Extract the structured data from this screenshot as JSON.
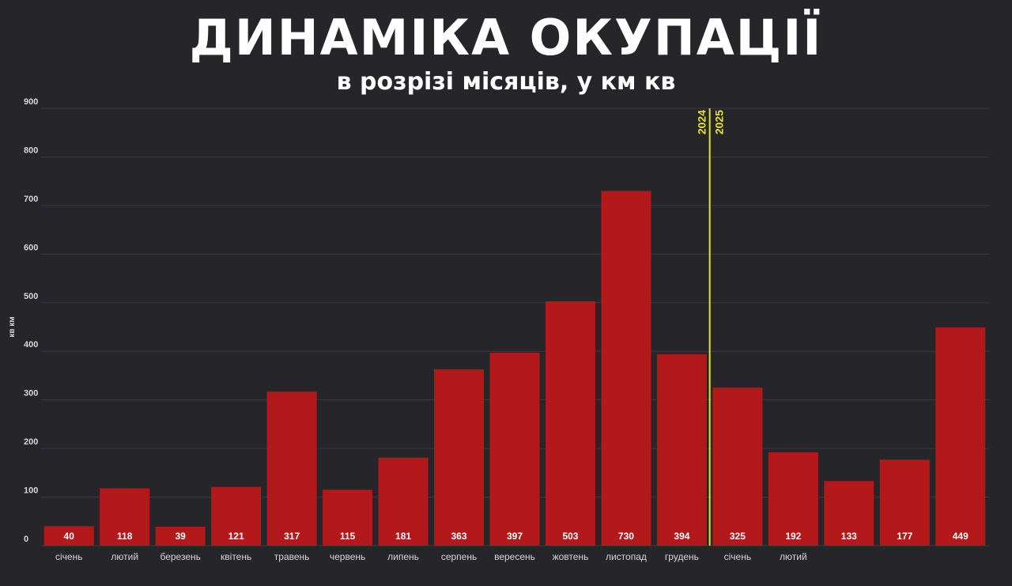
{
  "header": {
    "title": "ДИНАМІКА ОКУПАЦІЇ",
    "subtitle": "в розрізі місяців, у км кв"
  },
  "colors": {
    "background": "#25252a",
    "bar": "#b3191b",
    "grid": "#3a3a40",
    "divider": "#e6e619",
    "text": "#ffffff",
    "axis_text": "#d8d8d8"
  },
  "chart_data": {
    "type": "bar",
    "title": "ДИНАМІКА ОКУПАЦІЇ",
    "subtitle": "в розрізі місяців, у км кв",
    "xlabel": "",
    "ylabel": "кв км",
    "ylim": [
      0,
      900
    ],
    "yticks": [
      0,
      100,
      200,
      300,
      400,
      500,
      600,
      700,
      800,
      900
    ],
    "grid": true,
    "categories": [
      "січень",
      "лютий",
      "березень",
      "квітень",
      "травень",
      "червень",
      "липень",
      "серпень",
      "вересень",
      "жовтень",
      "листопад",
      "грудень",
      "січень",
      "лютий",
      "",
      "",
      ""
    ],
    "values": [
      40,
      118,
      39,
      121,
      317,
      115,
      181,
      363,
      397,
      503,
      730,
      394,
      325,
      192,
      133,
      177,
      449
    ],
    "data_labels": [
      "40",
      "118",
      "39",
      "121",
      "317",
      "115",
      "181",
      "363",
      "397",
      "503",
      "730",
      "394",
      "325",
      "192",
      "133",
      "177",
      "449"
    ],
    "year_divider": {
      "after_index": 11,
      "left_label": "2024",
      "right_label": "2025"
    }
  }
}
